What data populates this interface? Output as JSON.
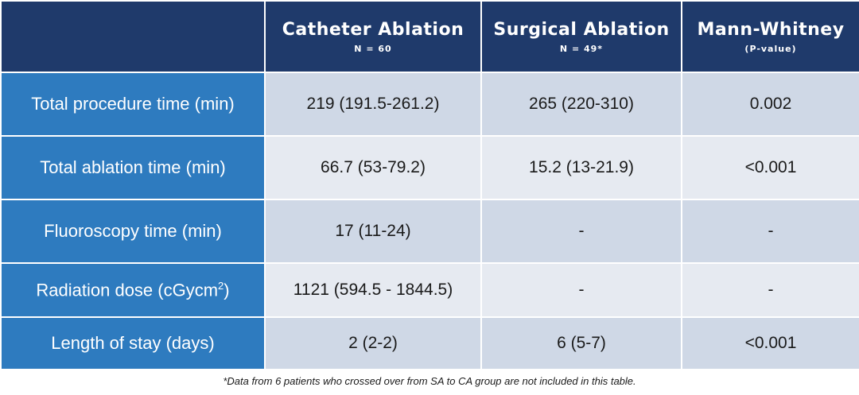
{
  "table": {
    "headers": [
      {
        "title": "",
        "sub": ""
      },
      {
        "title": "Catheter Ablation",
        "sub": "N = 60"
      },
      {
        "title": "Surgical Ablation",
        "sub": "N = 49*"
      },
      {
        "title": "Mann-Whitney",
        "sub": "(P-value)"
      }
    ],
    "rows": [
      {
        "label": "Total procedure time (min)",
        "catheter": "219 (191.5-261.2)",
        "surgical": "265 (220-310)",
        "p": "0.002"
      },
      {
        "label": "Total ablation time (min)",
        "catheter": "66.7 (53-79.2)",
        "surgical": "15.2 (13-21.9)",
        "p": "<0.001"
      },
      {
        "label": "Fluoroscopy time (min)",
        "catheter": "17 (11-24)",
        "surgical": "-",
        "p": "-"
      },
      {
        "label_main": "Radiation dose (cGycm",
        "label_sup": "2",
        "label_end": ")",
        "catheter": "1121 (594.5 - 1844.5)",
        "surgical": "-",
        "p": "-"
      },
      {
        "label": "Length of stay (days)",
        "catheter": "2 (2-2)",
        "surgical": "6 (5-7)",
        "p": "<0.001"
      }
    ]
  },
  "footnote": "*Data from 6 patients who crossed over from SA to CA group are not included in this table.",
  "colors": {
    "header_bg": "#1f3a6b",
    "row_label_bg": "#2e7bbf",
    "cell_dark": "#cfd8e6",
    "cell_light": "#e6eaf1"
  }
}
